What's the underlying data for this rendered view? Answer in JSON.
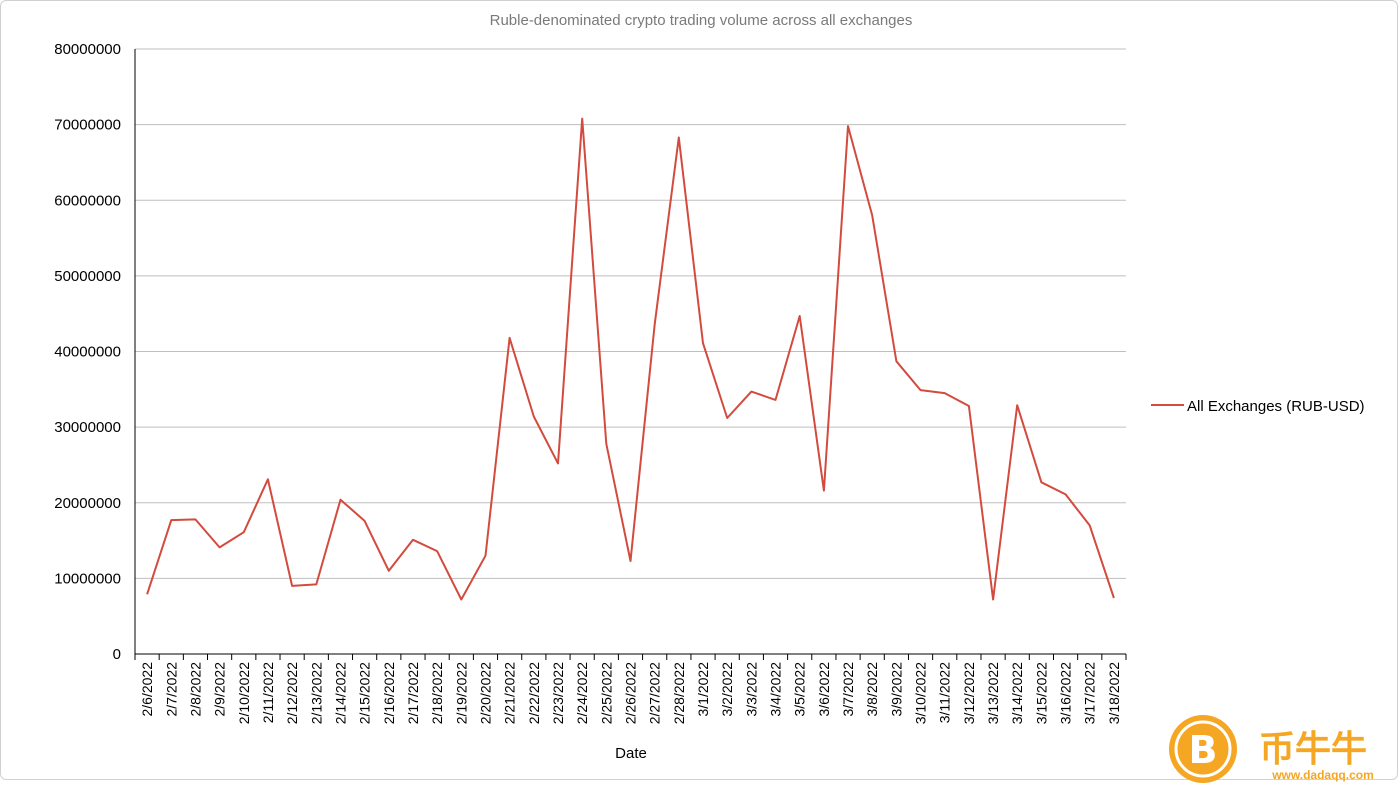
{
  "chart_data": {
    "type": "line",
    "title": "Ruble-denominated crypto trading volume across all exchanges",
    "xlabel": "Date",
    "ylabel": "",
    "ylim": [
      0,
      80000000
    ],
    "yticks": [
      "0",
      "10000000",
      "20000000",
      "30000000",
      "40000000",
      "50000000",
      "60000000",
      "70000000",
      "80000000"
    ],
    "grid": true,
    "legend_position": "right",
    "x": [
      "2/6/2022",
      "2/7/2022",
      "2/8/2022",
      "2/9/2022",
      "2/10/2022",
      "2/11/2022",
      "2/12/2022",
      "2/13/2022",
      "2/14/2022",
      "2/15/2022",
      "2/16/2022",
      "2/17/2022",
      "2/18/2022",
      "2/19/2022",
      "2/20/2022",
      "2/21/2022",
      "2/22/2022",
      "2/23/2022",
      "2/24/2022",
      "2/25/2022",
      "2/26/2022",
      "2/27/2022",
      "2/28/2022",
      "3/1/2022",
      "3/2/2022",
      "3/3/2022",
      "3/4/2022",
      "3/5/2022",
      "3/6/2022",
      "3/7/2022",
      "3/8/2022",
      "3/9/2022",
      "3/10/2022",
      "3/11/2022",
      "3/12/2022",
      "3/13/2022",
      "3/14/2022",
      "3/15/2022",
      "3/16/2022",
      "3/17/2022",
      "3/18/2022"
    ],
    "series": [
      {
        "name": "All Exchanges (RUB-USD)",
        "color": "#d24b3e",
        "values": [
          7900000,
          17700000,
          17800000,
          14100000,
          16100000,
          23100000,
          9000000,
          9200000,
          20400000,
          17600000,
          11000000,
          15100000,
          13600000,
          7200000,
          13000000,
          41800000,
          31400000,
          25200000,
          70800000,
          27800000,
          12300000,
          43600000,
          68300000,
          41100000,
          31200000,
          34700000,
          33600000,
          44700000,
          21600000,
          69800000,
          58000000,
          38700000,
          34900000,
          34500000,
          32800000,
          7200000,
          32900000,
          22700000,
          21100000,
          17000000,
          7400000
        ]
      }
    ]
  },
  "watermark": {
    "logo_symbol": "B",
    "brand_text": "币牛牛",
    "url_text": "www.dadaqq.com",
    "color": "#f5a623"
  }
}
